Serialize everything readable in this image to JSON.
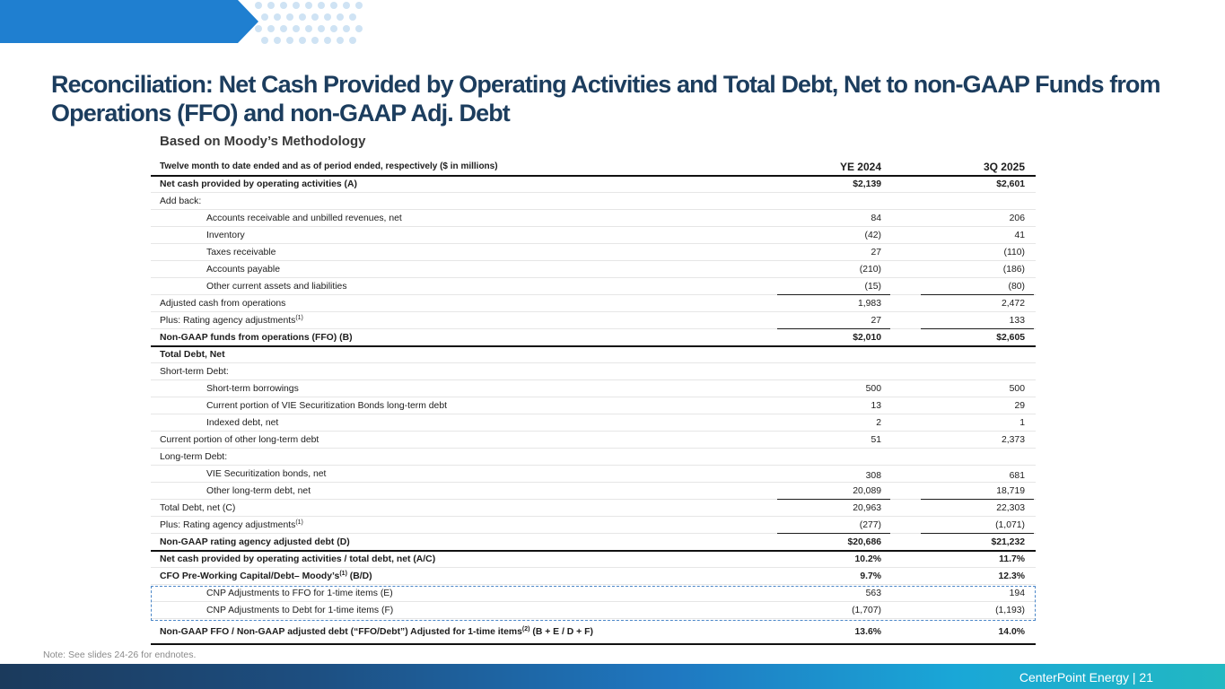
{
  "title": "Reconciliation: Net Cash Provided by Operating Activities and Total Debt, Net to non-GAAP Funds from Operations (FFO) and non-GAAP Adj. Debt",
  "subtitle": "Based on Moody’s Methodology",
  "table": {
    "header_label": "Twelve month to date ended and as of period ended, respectively ($ in millions)",
    "col1": "YE 2024",
    "col2": "3Q 2025",
    "rows": [
      {
        "label": "Net cash provided by operating activities (A)",
        "v1": "$2,139",
        "v2": "$2,601"
      },
      {
        "label": "Add back:",
        "v1": "",
        "v2": ""
      },
      {
        "label": "Accounts receivable and unbilled revenues, net",
        "v1": "84",
        "v2": "206"
      },
      {
        "label": "Inventory",
        "v1": "(42)",
        "v2": "41"
      },
      {
        "label": "Taxes receivable",
        "v1": "27",
        "v2": "(110)"
      },
      {
        "label": "Accounts payable",
        "v1": "(210)",
        "v2": "(186)"
      },
      {
        "label": "Other current assets and liabilities",
        "v1": "(15)",
        "v2": "(80)"
      },
      {
        "label": "Adjusted cash from operations",
        "v1": "1,983",
        "v2": "2,472"
      },
      {
        "label": "Plus: Rating agency adjustments",
        "sup": "(1)",
        "v1": "27",
        "v2": "133"
      },
      {
        "label": "Non-GAAP funds from operations (FFO) (B)",
        "v1": "$2,010",
        "v2": "$2,605"
      },
      {
        "label": "Total Debt, Net",
        "v1": "",
        "v2": ""
      },
      {
        "label": "Short-term Debt:",
        "v1": "",
        "v2": ""
      },
      {
        "label": "Short-term borrowings",
        "v1": "500",
        "v2": "500"
      },
      {
        "label": "Current portion of VIE Securitization Bonds long-term debt",
        "v1": "13",
        "v2": "29"
      },
      {
        "label": "Indexed debt, net",
        "v1": "2",
        "v2": "1"
      },
      {
        "label": "Current portion of other long-term debt",
        "v1": "51",
        "v2": "2,373"
      },
      {
        "label": "Long-term Debt:",
        "v1": "",
        "v2": ""
      },
      {
        "label": "VIE Securitization bonds, net",
        "v1": "308",
        "v2": "681"
      },
      {
        "label": "Other long-term debt, net",
        "v1": "20,089",
        "v2": "18,719"
      },
      {
        "label": "Total Debt, net (C)",
        "v1": "20,963",
        "v2": "22,303"
      },
      {
        "label": "Plus: Rating agency adjustments",
        "sup": "(1)",
        "v1": "(277)",
        "v2": "(1,071)"
      },
      {
        "label": "Non-GAAP rating agency adjusted debt (D)",
        "v1": "$20,686",
        "v2": "$21,232"
      },
      {
        "label": "Net cash provided by operating activities / total debt, net (A/C)",
        "v1": "10.2%",
        "v2": "11.7%"
      },
      {
        "label": "CFO Pre-Working Capital/Debt– Moody’s",
        "sup": "(1)",
        "label_suffix": " (B/D)",
        "v1": "9.7%",
        "v2": "12.3%"
      },
      {
        "label": "CNP Adjustments to FFO for 1-time items (E)",
        "v1": "563",
        "v2": "194"
      },
      {
        "label": "CNP Adjustments to Debt for 1-time items (F)",
        "v1": "(1,707)",
        "v2": "(1,193)"
      },
      {
        "label": "Non-GAAP FFO / Non-GAAP adjusted debt (“FFO/Debt”) Adjusted for 1-time items",
        "sup": "(2)",
        "label_suffix": " (B + E / D + F)",
        "v1": "13.6%",
        "v2": "14.0%"
      }
    ]
  },
  "note": "Note: See slides 24-26 for endnotes.",
  "footer": "CenterPoint Energy | 21",
  "colors": {
    "title": "#1c3d5e",
    "banner": "#1f7fd0",
    "dots": "#cfe3f4",
    "dashed_box": "#4a86c8"
  }
}
